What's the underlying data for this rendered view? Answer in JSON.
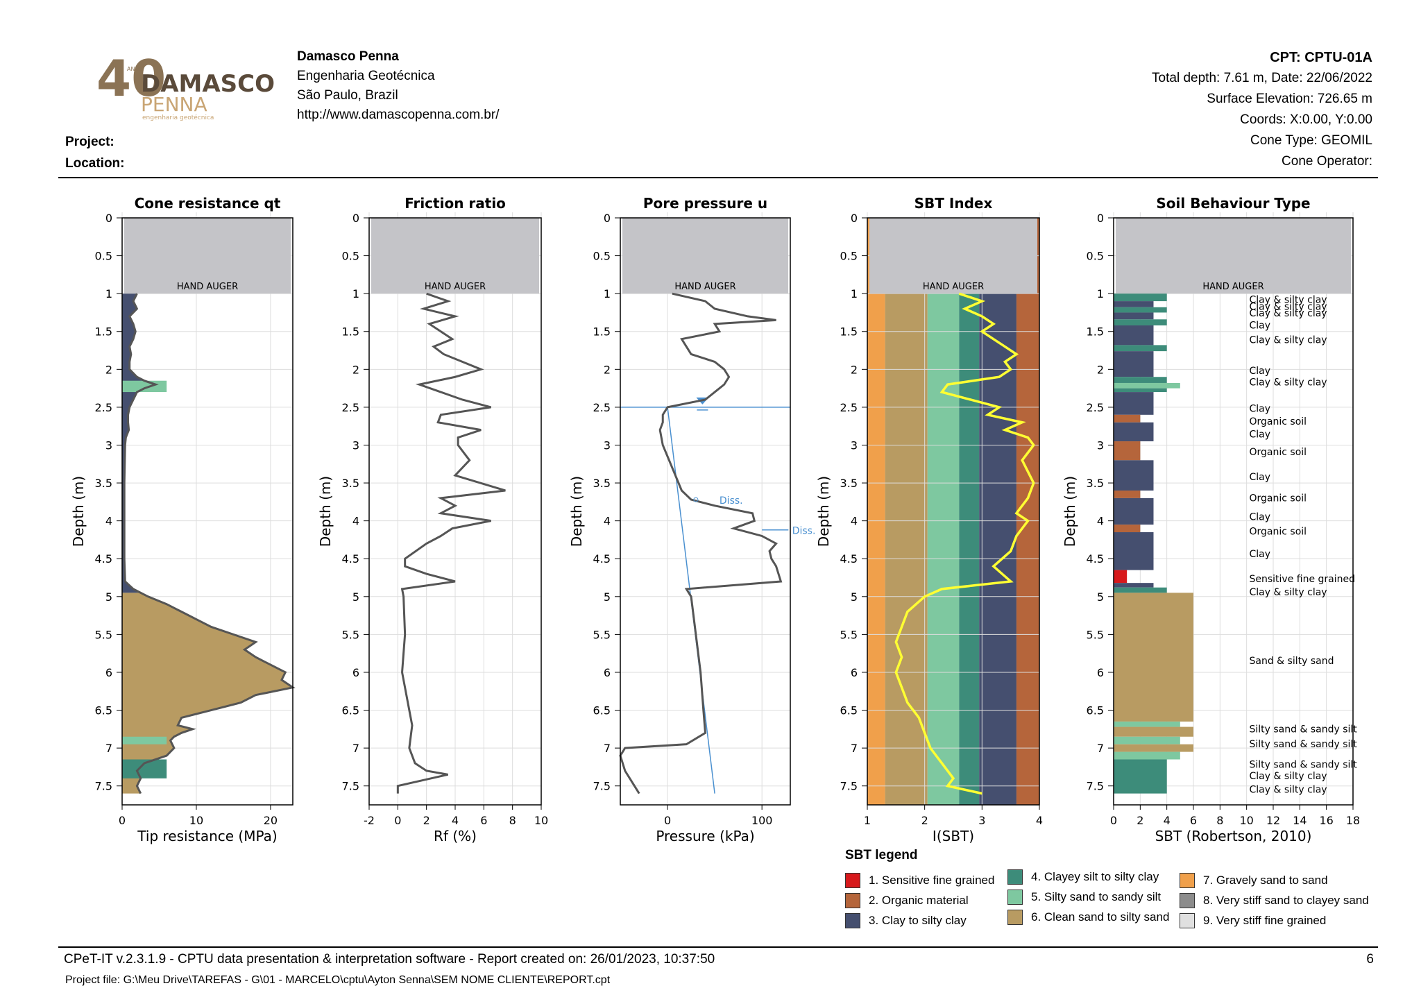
{
  "header": {
    "logo_years": "40",
    "logo_anos": "ANOS",
    "logo_brand1": "DAMASCO",
    "logo_brand2": "PENNA",
    "logo_tag": "engenharia geotécnica",
    "company_name": "Damasco Penna",
    "company_line1": "Engenharia Geotécnica",
    "company_line2": "São Paulo, Brazil",
    "company_url": "http://www.damascopenna.com.br/",
    "cpt_title": "CPT: CPTU-01A",
    "cpt_line1": "Total depth: 7.61 m, Date: 22/06/2022",
    "cpt_line2": "Surface Elevation: 726.65 m",
    "cpt_line3": "Coords: X:0.00, Y:0.00",
    "cpt_line4": "Cone Type: GEOMIL",
    "cpt_line5": "Cone Operator:",
    "project_label": "Project:",
    "location_label": "Location:"
  },
  "colors": {
    "sbt1": "#d7191c",
    "sbt2": "#b5653b",
    "sbt3": "#454f6f",
    "sbt4": "#3d8c7a",
    "sbt5": "#7ec8a0",
    "sbt6": "#b89b62",
    "sbt7": "#f0a04b",
    "sbt8": "#8c8c8c",
    "sbt9": "#e0e0e0",
    "hand_auger": "#c4c4c8",
    "curve": "#555555",
    "ic_line": "#ffff33",
    "water": "#4a90d0"
  },
  "chart_data": [
    {
      "type": "area",
      "title": "Cone resistance qt",
      "xlabel": "Tip resistance (MPa)",
      "ylabel": "Depth (m)",
      "xlim": [
        0,
        23
      ],
      "ylim": [
        0,
        7.75
      ],
      "xticks": [
        0,
        10,
        20
      ],
      "yticks": [
        0,
        0.5,
        1,
        1.5,
        2,
        2.5,
        3,
        3.5,
        4,
        4.5,
        5,
        5.5,
        6,
        6.5,
        7,
        7.5
      ],
      "annotation": "HAND AUGER",
      "depth": [
        1.0,
        1.1,
        1.2,
        1.3,
        1.4,
        1.5,
        1.6,
        1.7,
        1.8,
        1.9,
        2.0,
        2.1,
        2.15,
        2.2,
        2.25,
        2.3,
        2.4,
        2.5,
        2.6,
        2.7,
        2.8,
        2.9,
        3.0,
        3.5,
        4.0,
        4.5,
        4.8,
        4.9,
        5.0,
        5.1,
        5.2,
        5.3,
        5.4,
        5.5,
        5.6,
        5.7,
        5.8,
        5.9,
        6.0,
        6.1,
        6.2,
        6.3,
        6.4,
        6.5,
        6.6,
        6.7,
        6.75,
        6.8,
        6.85,
        6.9,
        7.0,
        7.1,
        7.2,
        7.3,
        7.4,
        7.5,
        7.6
      ],
      "qt": [
        2.0,
        1.5,
        2.0,
        1.0,
        1.5,
        1.8,
        1.5,
        1.0,
        1.2,
        1.0,
        1.0,
        2.0,
        3.0,
        4.5,
        3.0,
        2.0,
        1.5,
        1.0,
        0.8,
        0.8,
        0.9,
        0.5,
        0.4,
        0.3,
        0.3,
        0.3,
        0.4,
        1.5,
        3.5,
        6.0,
        8.0,
        10.0,
        12.0,
        15.0,
        18.0,
        16.5,
        18.0,
        20.0,
        22.0,
        21.5,
        23.0,
        18.0,
        16.0,
        12.0,
        8.0,
        7.5,
        9.5,
        8.0,
        7.0,
        6.5,
        7.0,
        6.0,
        3.0,
        2.0,
        2.5,
        2.0,
        2.5
      ]
    },
    {
      "type": "line",
      "title": "Friction ratio",
      "xlabel": "Rf (%)",
      "ylabel": "Depth (m)",
      "xlim": [
        -2,
        10
      ],
      "ylim": [
        0,
        7.75
      ],
      "xticks": [
        -2,
        0,
        2,
        4,
        6,
        8,
        10
      ],
      "yticks": [
        0,
        0.5,
        1,
        1.5,
        2,
        2.5,
        3,
        3.5,
        4,
        4.5,
        5,
        5.5,
        6,
        6.5,
        7,
        7.5
      ],
      "annotation": "HAND AUGER",
      "depth": [
        1.0,
        1.1,
        1.2,
        1.3,
        1.4,
        1.5,
        1.6,
        1.7,
        1.8,
        1.9,
        2.0,
        2.1,
        2.2,
        2.3,
        2.4,
        2.5,
        2.6,
        2.7,
        2.8,
        2.9,
        3.0,
        3.2,
        3.4,
        3.6,
        3.7,
        3.8,
        3.9,
        4.0,
        4.1,
        4.2,
        4.3,
        4.5,
        4.6,
        4.7,
        4.8,
        4.9,
        5.0,
        5.5,
        6.0,
        6.5,
        6.7,
        7.0,
        7.2,
        7.3,
        7.35,
        7.5,
        7.6
      ],
      "rf": [
        2.0,
        3.5,
        1.8,
        4.0,
        2.2,
        3.0,
        3.8,
        2.5,
        3.2,
        4.5,
        5.8,
        4.0,
        1.5,
        3.0,
        4.5,
        6.5,
        3.0,
        2.8,
        5.8,
        4.2,
        4.2,
        5.0,
        4.0,
        7.5,
        3.0,
        4.0,
        3.0,
        6.5,
        3.8,
        3.0,
        2.0,
        0.5,
        0.5,
        2.0,
        4.0,
        0.3,
        0.4,
        0.5,
        0.3,
        0.8,
        1.0,
        0.8,
        1.2,
        2.0,
        3.5,
        0.0,
        0.0
      ]
    },
    {
      "type": "line",
      "title": "Pore pressure u",
      "xlabel": "Pressure (kPa)",
      "ylabel": "Depth (m)",
      "xlim": [
        -50,
        130
      ],
      "ylim": [
        0,
        7.75
      ],
      "xticks": [
        0,
        100
      ],
      "yticks": [
        0,
        0.5,
        1,
        1.5,
        2,
        2.5,
        3,
        3.5,
        4,
        4.5,
        5,
        5.5,
        6,
        6.5,
        7,
        7.5
      ],
      "annotation": "HAND AUGER",
      "water_table_depth": 2.5,
      "dissipation_label": "Diss.",
      "dissipation_depths": [
        3.72,
        4.12
      ],
      "depth": [
        1.0,
        1.1,
        1.2,
        1.3,
        1.35,
        1.4,
        1.5,
        1.6,
        1.7,
        1.8,
        1.9,
        2.0,
        2.1,
        2.2,
        2.3,
        2.4,
        2.5,
        2.6,
        2.7,
        2.8,
        3.0,
        3.3,
        3.6,
        3.72,
        3.8,
        3.9,
        4.0,
        4.1,
        4.2,
        4.3,
        4.4,
        4.5,
        4.6,
        4.8,
        4.9,
        5.0,
        5.5,
        6.0,
        6.5,
        6.8,
        6.95,
        7.0,
        7.1,
        7.3,
        7.5,
        7.6
      ],
      "u": [
        5,
        40,
        50,
        85,
        115,
        50,
        55,
        15,
        20,
        25,
        50,
        60,
        65,
        60,
        50,
        40,
        0,
        -5,
        -5,
        -8,
        -5,
        5,
        15,
        25,
        50,
        90,
        92,
        70,
        100,
        115,
        108,
        110,
        115,
        120,
        20,
        25,
        30,
        35,
        38,
        40,
        20,
        -45,
        -50,
        -45,
        -35,
        -30
      ]
    },
    {
      "type": "line",
      "title": "SBT Index",
      "xlabel": "I(SBT)",
      "ylabel": "Depth (m)",
      "xlim": [
        1,
        4
      ],
      "ylim": [
        0,
        7.75
      ],
      "xticks": [
        1,
        2,
        3,
        4
      ],
      "yticks": [
        0,
        0.5,
        1,
        1.5,
        2,
        2.5,
        3,
        3.5,
        4,
        4.5,
        5,
        5.5,
        6,
        6.5,
        7,
        7.5
      ],
      "annotation": "HAND AUGER",
      "zone_bounds": [
        1,
        1.31,
        2.05,
        2.6,
        2.95,
        3.6,
        4
      ],
      "zone_colors": [
        "sbt7",
        "sbt6",
        "sbt5",
        "sbt4",
        "sbt3",
        "sbt2"
      ],
      "depth": [
        1.0,
        1.1,
        1.2,
        1.3,
        1.4,
        1.5,
        1.6,
        1.7,
        1.8,
        1.9,
        2.0,
        2.1,
        2.2,
        2.3,
        2.4,
        2.5,
        2.6,
        2.7,
        2.8,
        2.9,
        3.0,
        3.2,
        3.5,
        3.7,
        3.9,
        4.0,
        4.2,
        4.4,
        4.6,
        4.8,
        4.9,
        5.0,
        5.2,
        5.4,
        5.6,
        5.8,
        6.0,
        6.2,
        6.4,
        6.6,
        6.8,
        7.0,
        7.2,
        7.4,
        7.5,
        7.6
      ],
      "ic": [
        2.6,
        3.0,
        2.7,
        3.0,
        3.2,
        3.0,
        3.2,
        3.4,
        3.6,
        3.4,
        3.5,
        3.3,
        2.4,
        2.3,
        2.8,
        3.3,
        3.1,
        3.7,
        3.4,
        3.8,
        3.9,
        3.7,
        3.9,
        3.8,
        3.6,
        3.8,
        3.6,
        3.5,
        3.2,
        3.5,
        2.3,
        2.0,
        1.7,
        1.6,
        1.5,
        1.6,
        1.5,
        1.6,
        1.7,
        1.9,
        2.0,
        2.1,
        2.3,
        2.5,
        2.4,
        3.0
      ]
    },
    {
      "type": "bar",
      "title": "Soil Behaviour Type",
      "xlabel": "SBT (Robertson, 2010)",
      "ylabel": "Depth (m)",
      "xlim": [
        0,
        18
      ],
      "ylim": [
        0,
        7.75
      ],
      "xticks": [
        0,
        2,
        4,
        6,
        8,
        10,
        12,
        14,
        16,
        18
      ],
      "yticks": [
        0,
        0.5,
        1,
        1.5,
        2,
        2.5,
        3,
        3.5,
        4,
        4.5,
        5,
        5.5,
        6,
        6.5,
        7,
        7.5
      ],
      "annotation": "HAND AUGER",
      "layers": [
        {
          "top": 1.0,
          "bottom": 1.1,
          "sbt": 4
        },
        {
          "top": 1.1,
          "bottom": 1.18,
          "sbt": 3
        },
        {
          "top": 1.18,
          "bottom": 1.25,
          "sbt": 4
        },
        {
          "top": 1.25,
          "bottom": 1.34,
          "sbt": 3
        },
        {
          "top": 1.34,
          "bottom": 1.42,
          "sbt": 4
        },
        {
          "top": 1.42,
          "bottom": 1.68,
          "sbt": 3
        },
        {
          "top": 1.68,
          "bottom": 1.76,
          "sbt": 4
        },
        {
          "top": 1.76,
          "bottom": 2.1,
          "sbt": 3
        },
        {
          "top": 2.1,
          "bottom": 2.18,
          "sbt": 4
        },
        {
          "top": 2.18,
          "bottom": 2.25,
          "sbt": 5
        },
        {
          "top": 2.25,
          "bottom": 2.3,
          "sbt": 4
        },
        {
          "top": 2.3,
          "bottom": 2.6,
          "sbt": 3
        },
        {
          "top": 2.6,
          "bottom": 2.7,
          "sbt": 2
        },
        {
          "top": 2.7,
          "bottom": 2.95,
          "sbt": 3
        },
        {
          "top": 2.95,
          "bottom": 3.2,
          "sbt": 2
        },
        {
          "top": 3.2,
          "bottom": 3.6,
          "sbt": 3
        },
        {
          "top": 3.6,
          "bottom": 3.7,
          "sbt": 2
        },
        {
          "top": 3.7,
          "bottom": 4.05,
          "sbt": 3
        },
        {
          "top": 4.05,
          "bottom": 4.15,
          "sbt": 2
        },
        {
          "top": 4.15,
          "bottom": 4.65,
          "sbt": 3
        },
        {
          "top": 4.65,
          "bottom": 4.82,
          "sbt": 1
        },
        {
          "top": 4.82,
          "bottom": 4.88,
          "sbt": 3
        },
        {
          "top": 4.88,
          "bottom": 4.95,
          "sbt": 4
        },
        {
          "top": 4.95,
          "bottom": 6.65,
          "sbt": 6
        },
        {
          "top": 6.65,
          "bottom": 6.72,
          "sbt": 5
        },
        {
          "top": 6.72,
          "bottom": 6.85,
          "sbt": 6
        },
        {
          "top": 6.85,
          "bottom": 6.95,
          "sbt": 5
        },
        {
          "top": 6.95,
          "bottom": 7.05,
          "sbt": 6
        },
        {
          "top": 7.05,
          "bottom": 7.15,
          "sbt": 5
        },
        {
          "top": 7.15,
          "bottom": 7.6,
          "sbt": 4
        }
      ],
      "labels": [
        {
          "depth": 1.03,
          "text": "Clay & silty clay"
        },
        {
          "depth": 1.12,
          "text": "Clay & silty clay"
        },
        {
          "depth": 1.21,
          "text": "Clay & silty clay"
        },
        {
          "depth": 1.37,
          "text": "Clay"
        },
        {
          "depth": 1.56,
          "text": "Clay & silty clay"
        },
        {
          "depth": 1.97,
          "text": "Clay"
        },
        {
          "depth": 2.12,
          "text": "Clay & silty clay"
        },
        {
          "depth": 2.47,
          "text": "Clay"
        },
        {
          "depth": 2.64,
          "text": "Organic soil"
        },
        {
          "depth": 2.81,
          "text": "Clay"
        },
        {
          "depth": 3.04,
          "text": "Organic soil"
        },
        {
          "depth": 3.37,
          "text": "Clay"
        },
        {
          "depth": 3.65,
          "text": "Organic soil"
        },
        {
          "depth": 3.9,
          "text": "Clay"
        },
        {
          "depth": 4.09,
          "text": "Organic soil"
        },
        {
          "depth": 4.39,
          "text": "Clay"
        },
        {
          "depth": 4.72,
          "text": "Sensitive fine grained"
        },
        {
          "depth": 4.89,
          "text": "Clay & silty clay"
        },
        {
          "depth": 5.8,
          "text": "Sand & silty sand"
        },
        {
          "depth": 6.7,
          "text": "Silty sand & sandy silt"
        },
        {
          "depth": 6.9,
          "text": "Silty sand & sandy silt"
        },
        {
          "depth": 7.17,
          "text": "Silty sand & sandy silt"
        },
        {
          "depth": 7.32,
          "text": "Clay & silty clay"
        },
        {
          "depth": 7.5,
          "text": "Clay & silty clay"
        }
      ]
    }
  ],
  "legend": {
    "title": "SBT legend",
    "items": [
      {
        "label": "1. Sensitive fine grained",
        "color": "#d7191c"
      },
      {
        "label": "2. Organic material",
        "color": "#b5653b"
      },
      {
        "label": "3. Clay to silty clay",
        "color": "#454f6f"
      },
      {
        "label": "4. Clayey silt to silty clay",
        "color": "#3d8c7a"
      },
      {
        "label": "5. Silty sand to sandy silt",
        "color": "#7ec8a0"
      },
      {
        "label": "6. Clean sand to silty sand",
        "color": "#b89b62"
      },
      {
        "label": "7. Gravely sand to sand",
        "color": "#f0a04b"
      },
      {
        "label": "8. Very stiff sand to clayey sand",
        "color": "#8c8c8c"
      },
      {
        "label": "9. Very stiff fine grained",
        "color": "#e0e0e0"
      }
    ]
  },
  "footer": {
    "line1": "CPeT-IT v.2.3.1.9 - CPTU data presentation & interpretation software - Report created on: 26/01/2023, 10:37:50",
    "line2": "Project file: G:\\Meu Drive\\TAREFAS - G\\01 - MARCELO\\cptu\\Ayton Senna\\SEM NOME CLIENTE\\REPORT.cpt",
    "page": "6"
  }
}
